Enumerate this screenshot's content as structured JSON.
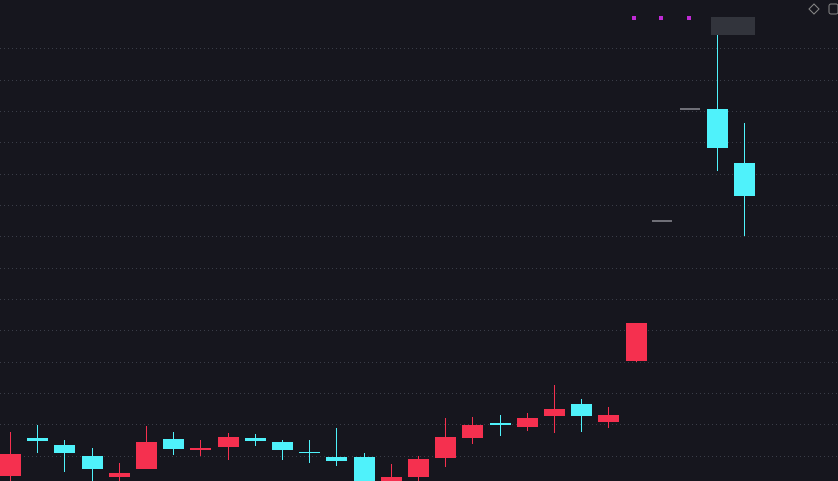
{
  "chart_data": {
    "type": "candlestick",
    "categories": [
      null,
      null,
      null,
      null,
      null,
      null,
      null,
      null,
      null,
      null,
      null,
      null,
      null,
      null,
      null,
      null,
      null,
      null,
      null,
      null,
      null,
      null,
      null,
      null,
      null,
      null,
      null,
      null
    ],
    "open": [
      27,
      40,
      28,
      12,
      8,
      39,
      32,
      33,
      44,
      40,
      31,
      28,
      20,
      0,
      4,
      22,
      44,
      56,
      56,
      63,
      72,
      65,
      66,
      158,
      null,
      null,
      333,
      285
    ],
    "high": [
      49,
      56,
      41,
      33,
      18,
      55,
      49,
      41,
      48,
      47,
      41,
      41,
      53,
      28,
      17,
      25,
      63,
      64,
      66,
      68,
      96,
      82,
      74,
      158,
      null,
      null,
      446,
      358
    ],
    "low": [
      0,
      28,
      9,
      0,
      0,
      12,
      26,
      25,
      21,
      35,
      21,
      18,
      15,
      0,
      0,
      0,
      14,
      37,
      45,
      50,
      48,
      49,
      53,
      119,
      null,
      null,
      310,
      245
    ],
    "close": [
      5,
      43,
      36,
      25,
      4,
      12,
      42,
      31,
      34,
      43,
      39,
      29,
      24,
      24,
      0,
      4,
      23,
      43,
      58,
      54,
      65,
      77,
      59,
      120,
      null,
      null,
      372,
      318
    ],
    "up_color": "#4ff2fb",
    "down_color": "#f5304f",
    "ylim": [
      0,
      481
    ],
    "yticks": [
      25,
      57,
      88,
      119,
      151,
      182,
      213,
      245,
      276,
      307,
      339,
      370,
      401,
      433
    ],
    "grid": true
  }
}
